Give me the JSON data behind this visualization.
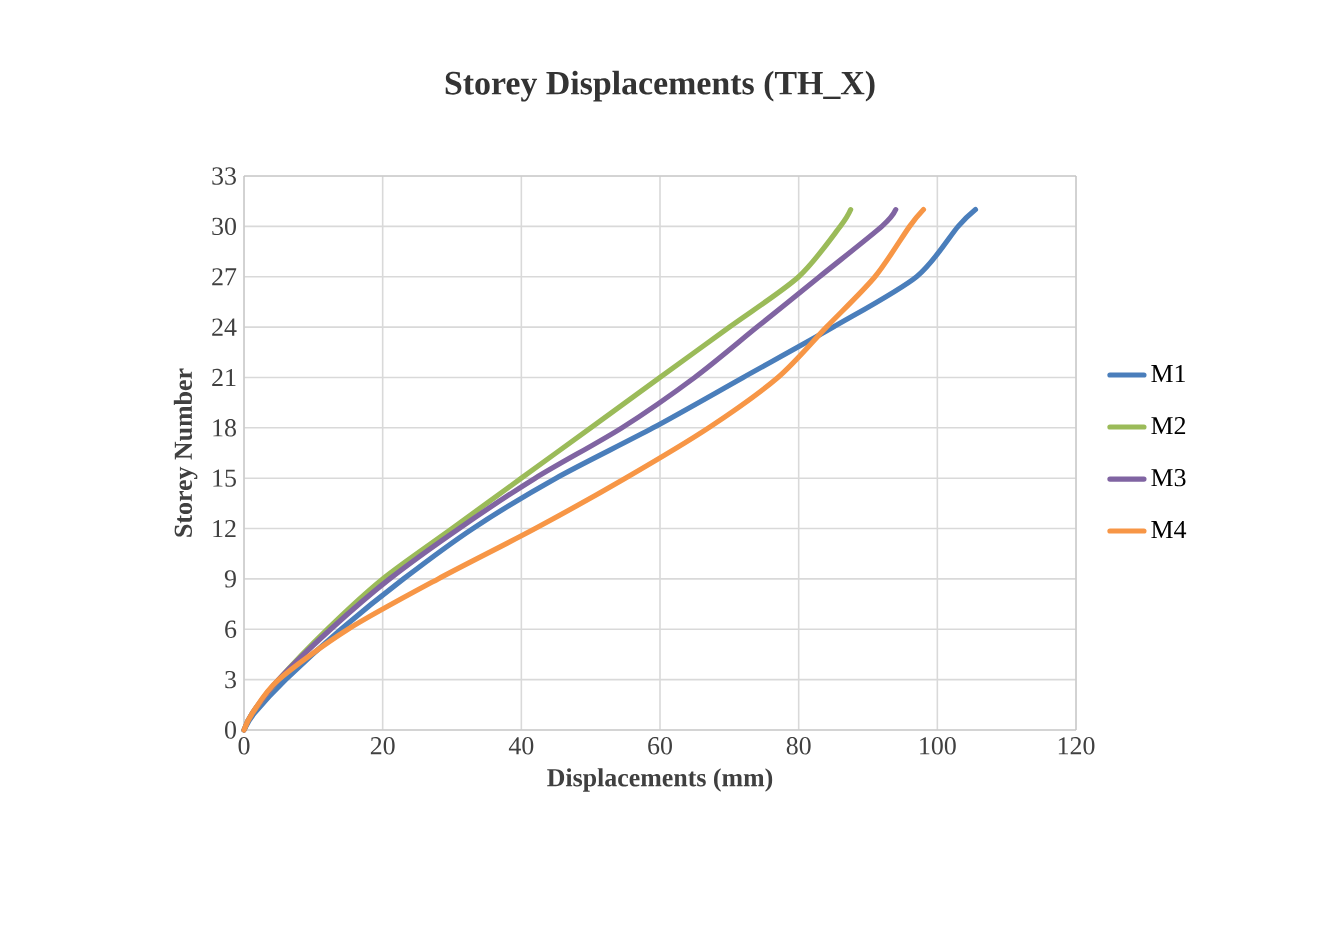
{
  "chart_data": {
    "type": "line",
    "title": "Storey Displacements (TH_X)",
    "xlabel": "Displacements (mm)",
    "ylabel": "Storey Number",
    "xlim": [
      0,
      120
    ],
    "xticks": [
      0,
      20,
      40,
      60,
      80,
      100,
      120
    ],
    "ylim": [
      0,
      33
    ],
    "yticks": [
      0,
      3,
      6,
      9,
      12,
      15,
      18,
      21,
      24,
      27,
      30,
      33
    ],
    "grid": true,
    "legend": "right",
    "marker": "none",
    "line_style": "solid",
    "series": [
      {
        "name": "M1",
        "color": "#4a7ebb",
        "x": [
          0,
          1.5,
          6,
          14,
          23,
          33,
          45,
          59,
          72,
          85,
          97,
          103,
          105.5
        ],
        "values": [
          0,
          1,
          3,
          6,
          9,
          12,
          15,
          18,
          21,
          24,
          27,
          30,
          31
        ]
      },
      {
        "name": "M2",
        "color": "#9bbb59",
        "x": [
          0,
          1.2,
          5,
          12,
          20,
          30,
          40,
          50,
          60,
          70,
          80,
          86,
          87.5
        ],
        "values": [
          0,
          1,
          3,
          6,
          9,
          12,
          15,
          18,
          21,
          24,
          27,
          30,
          31
        ]
      },
      {
        "name": "M3",
        "color": "#8064a2",
        "x": [
          0,
          1.2,
          5,
          12.5,
          21,
          31,
          42,
          54.5,
          65,
          74,
          83,
          92,
          94
        ],
        "values": [
          0,
          1,
          3,
          6,
          9,
          12,
          15,
          18,
          21,
          24,
          27,
          30,
          31
        ]
      },
      {
        "name": "M4",
        "color": "#f79646",
        "x": [
          0,
          1.2,
          5,
          15,
          28,
          42,
          55,
          67,
          77,
          84,
          91,
          96,
          98
        ],
        "values": [
          0,
          1,
          3,
          6,
          9,
          12,
          15,
          18,
          21,
          24,
          27,
          30,
          31
        ]
      }
    ]
  }
}
